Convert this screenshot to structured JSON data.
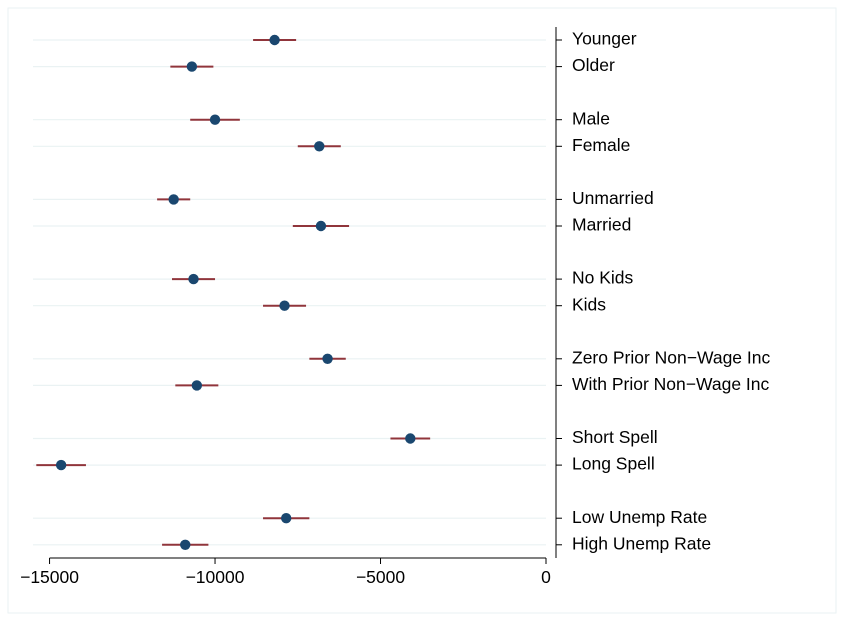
{
  "chart_data": {
    "type": "scatter",
    "subtype": "coefficient-plot-horizontal",
    "title": "",
    "xlabel": "",
    "ylabel": "",
    "xlim": [
      -15500,
      500
    ],
    "x_ticks": [
      -15000,
      -10000,
      -5000,
      0
    ],
    "x_tick_labels": [
      "-15000",
      "-10000",
      "-5000",
      "0"
    ],
    "grid": "horizontal",
    "label_axis": "right",
    "groups": [
      [
        {
          "label": "Younger",
          "estimate": -8200,
          "ci": [
            -8850,
            -7550
          ]
        },
        {
          "label": "Older",
          "estimate": -10700,
          "ci": [
            -11350,
            -10050
          ]
        }
      ],
      [
        {
          "label": "Male",
          "estimate": -10000,
          "ci": [
            -10750,
            -9250
          ]
        },
        {
          "label": "Female",
          "estimate": -6850,
          "ci": [
            -7500,
            -6200
          ]
        }
      ],
      [
        {
          "label": "Unmarried",
          "estimate": -11250,
          "ci": [
            -11750,
            -10750
          ]
        },
        {
          "label": "Married",
          "estimate": -6800,
          "ci": [
            -7650,
            -5950
          ]
        }
      ],
      [
        {
          "label": "No Kids",
          "estimate": -10650,
          "ci": [
            -11300,
            -10000
          ]
        },
        {
          "label": "Kids",
          "estimate": -7900,
          "ci": [
            -8550,
            -7250
          ]
        }
      ],
      [
        {
          "label": "Zero Prior Non−Wage Inc",
          "estimate": -6600,
          "ci": [
            -7150,
            -6050
          ]
        },
        {
          "label": "With Prior Non−Wage Inc",
          "estimate": -10550,
          "ci": [
            -11200,
            -9900
          ]
        }
      ],
      [
        {
          "label": "Short Spell",
          "estimate": -4100,
          "ci": [
            -4700,
            -3500
          ]
        },
        {
          "label": "Long Spell",
          "estimate": -14650,
          "ci": [
            -15400,
            -13900
          ]
        }
      ],
      [
        {
          "label": "Low Unemp Rate",
          "estimate": -7850,
          "ci": [
            -8550,
            -7150
          ]
        },
        {
          "label": "High Unemp Rate",
          "estimate": -10900,
          "ci": [
            -11600,
            -10200
          ]
        }
      ]
    ],
    "colors": {
      "point": "#1a476f",
      "ci_line": "#90353b",
      "grid": "#eaf2f3",
      "axis": "#000000",
      "frame": "#eaf2f3"
    }
  }
}
